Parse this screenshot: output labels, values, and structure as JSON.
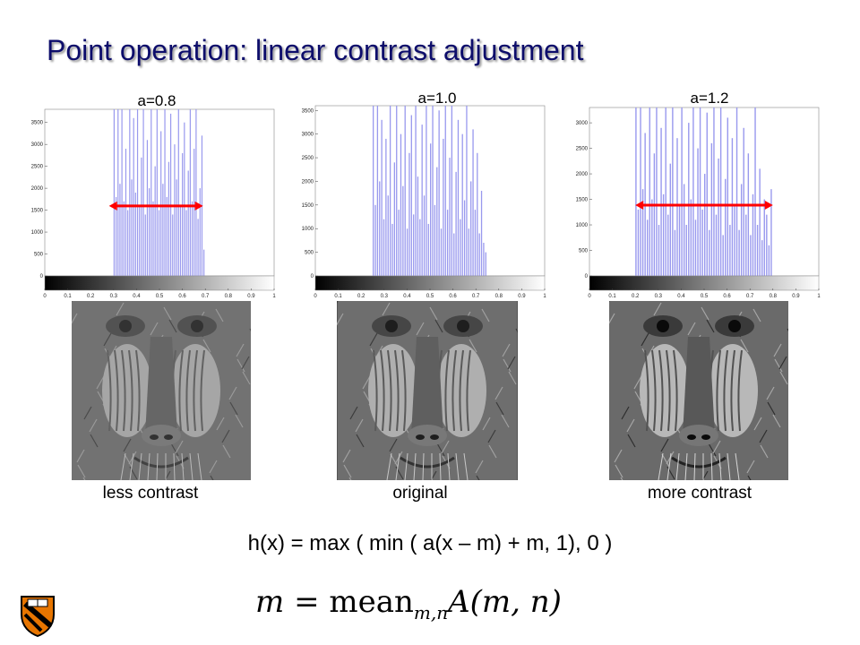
{
  "slide": {
    "title": "Point operation: linear contrast adjustment",
    "formula": "h(x) = max ( min ( a(x – m) + m, 1), 0 )",
    "mean_formula": {
      "lhs": "m",
      "eq": "=",
      "op": "mean",
      "sub": "m,n",
      "rhs": "A(m, n)"
    }
  },
  "panels": [
    {
      "label": "a=0.8",
      "caption": "less contrast"
    },
    {
      "label": "a=1.0",
      "caption": "original"
    },
    {
      "label": "a=1.2",
      "caption": "more contrast"
    }
  ],
  "colors": {
    "title": "#0d0d6b",
    "bars": "#9999ee",
    "arrow": "#ff0000"
  },
  "chart_data": [
    {
      "type": "bar",
      "title": "a=0.8",
      "xlim": [
        0,
        1
      ],
      "ylim": [
        0,
        3800
      ],
      "xticks": [
        "0",
        "0.1",
        "0.2",
        "0.3",
        "0.4",
        "0.5",
        "0.6",
        "0.7",
        "0.8",
        "0.9",
        "1"
      ],
      "yticks": [
        "0",
        "500",
        "1000",
        "1500",
        "2000",
        "2500",
        "3000",
        "3500"
      ],
      "range": [
        0.3,
        0.7
      ],
      "arrow": [
        0.28,
        0.69
      ],
      "series": [
        {
          "values": [
            3800,
            1800,
            3800,
            2100,
            3800,
            1700,
            2900,
            1500,
            3800,
            2200,
            3600,
            1900,
            3800,
            1600,
            2700,
            3800,
            1400,
            3100,
            2000,
            3800,
            1700,
            2500,
            3800,
            1500,
            3300,
            2100,
            3800,
            1800,
            2600,
            3700,
            1400,
            3000,
            2200,
            3800,
            1600,
            2800,
            3500,
            1500,
            2400,
            3800,
            1700,
            2900,
            3800,
            1300,
            2000,
            3200,
            600
          ]
        }
      ]
    },
    {
      "type": "bar",
      "title": "a=1.0",
      "xlim": [
        0,
        1
      ],
      "ylim": [
        0,
        3600
      ],
      "xticks": [
        "0",
        "0.1",
        "0.2",
        "0.3",
        "0.4",
        "0.5",
        "0.6",
        "0.7",
        "0.8",
        "0.9",
        "1"
      ],
      "yticks": [
        "0",
        "500",
        "1000",
        "1500",
        "2000",
        "2500",
        "3000",
        "3500"
      ],
      "range": [
        0.25,
        0.75
      ],
      "series": [
        {
          "values": [
            3600,
            1500,
            3600,
            2000,
            3300,
            1200,
            2900,
            1700,
            3600,
            1100,
            2400,
            3600,
            1400,
            3000,
            1900,
            3600,
            1000,
            2600,
            3400,
            1300,
            3600,
            2100,
            1200,
            3200,
            1700,
            3600,
            1100,
            2800,
            3600,
            1500,
            2300,
            3500,
            1000,
            2900,
            3600,
            1400,
            2500,
            3600,
            900,
            2200,
            3300,
            1200,
            3000,
            1600,
            3600,
            1000,
            2000,
            3100,
            1400,
            2600,
            900,
            1800,
            700,
            500
          ]
        }
      ]
    },
    {
      "type": "bar",
      "title": "a=1.2",
      "xlim": [
        0,
        1
      ],
      "ylim": [
        0,
        3300
      ],
      "xticks": [
        "0",
        "0.1",
        "0.2",
        "0.3",
        "0.4",
        "0.5",
        "0.6",
        "0.7",
        "0.8",
        "0.9",
        "1"
      ],
      "yticks": [
        "0",
        "500",
        "1000",
        "1500",
        "2000",
        "2500",
        "3000"
      ],
      "range": [
        0.2,
        0.8
      ],
      "arrow": [
        0.2,
        0.8
      ],
      "series": [
        {
          "values": [
            3300,
            1300,
            3300,
            1700,
            2800,
            1100,
            3300,
            1500,
            2400,
            3300,
            1000,
            2900,
            1600,
            3300,
            1200,
            2200,
            3300,
            900,
            2700,
            1400,
            3300,
            1800,
            1000,
            3000,
            1500,
            3300,
            1100,
            2500,
            3300,
            1300,
            2000,
            3200,
            900,
            2600,
            3300,
            1200,
            2300,
            3300,
            800,
            1900,
            3100,
            1000,
            2700,
            1400,
            3300,
            900,
            1800,
            2900,
            1200,
            2400,
            800,
            1600,
            3300,
            1000,
            2100,
            700,
            1500,
            1200,
            600,
            1700
          ]
        }
      ]
    }
  ]
}
